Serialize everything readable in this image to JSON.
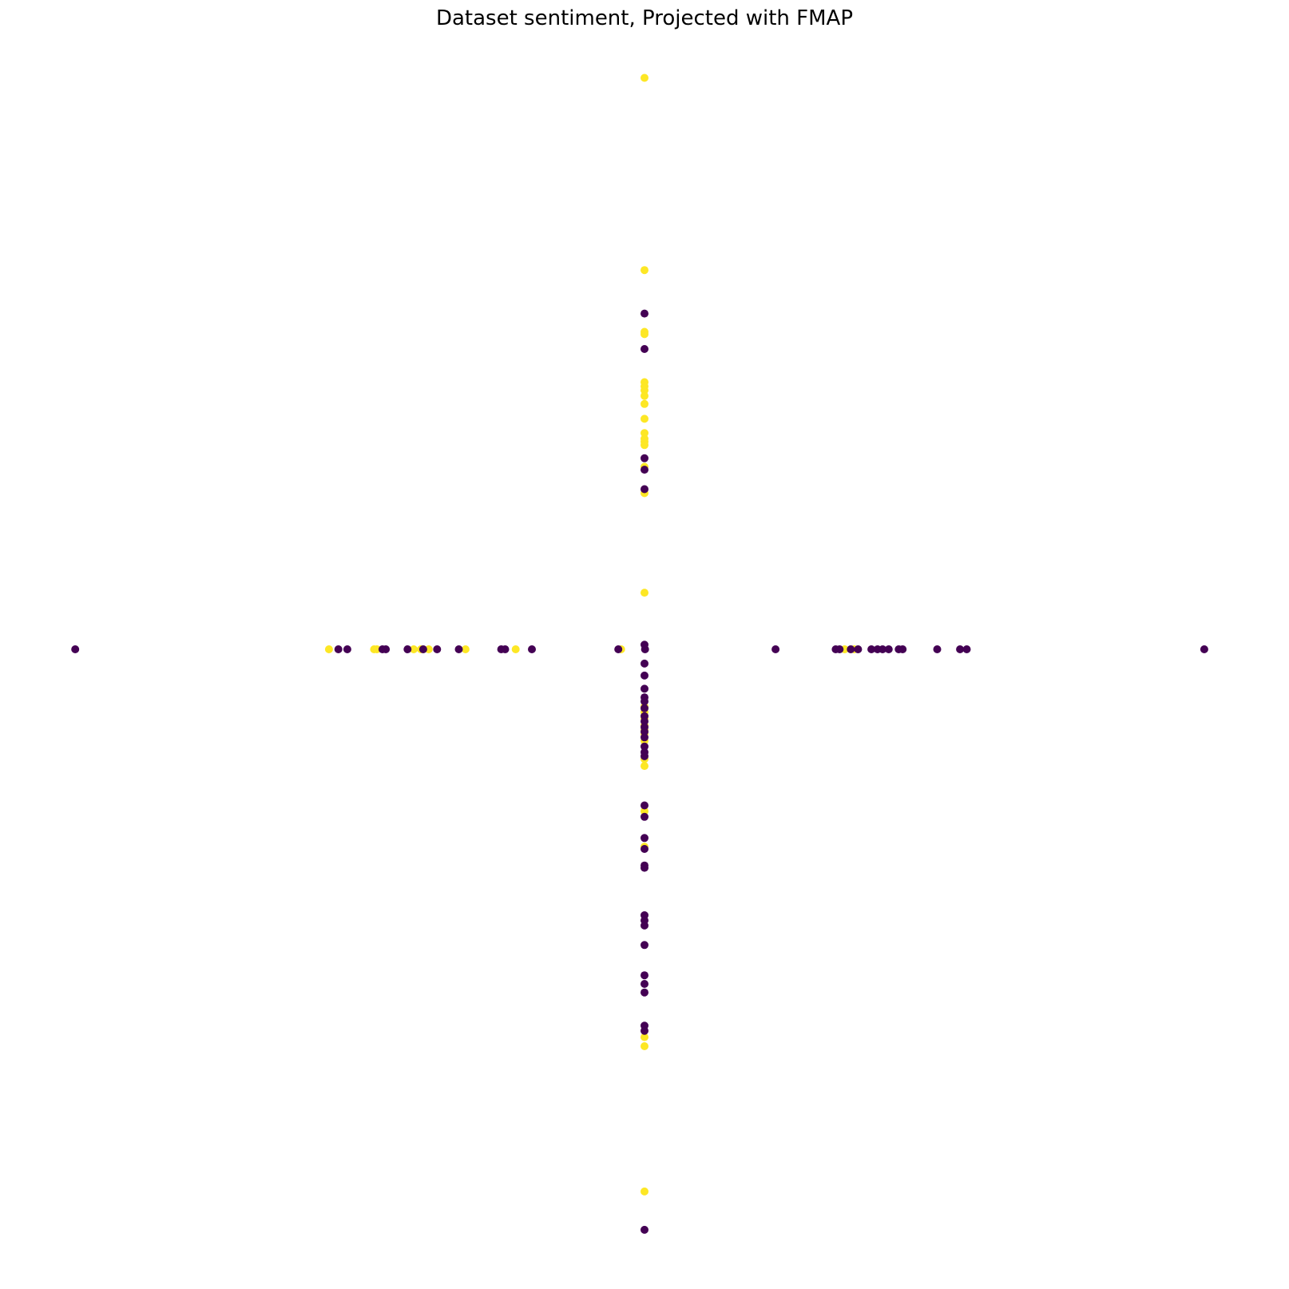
{
  "chart_data": {
    "type": "scatter",
    "title": "Dataset sentiment, Projected with FMAP",
    "xlabel": "",
    "ylabel": "",
    "axes_visible": false,
    "grid": false,
    "xlim": [
      -1.05,
      1.05
    ],
    "ylim": [
      -1.05,
      1.05
    ],
    "colors": {
      "0": "#440154",
      "1": "#fde725"
    },
    "series": [
      {
        "label_value": 1,
        "points": [
          [
            0.0,
            0.999
          ],
          [
            0.0,
            0.663
          ],
          [
            0.0,
            0.555
          ],
          [
            0.0,
            0.551
          ],
          [
            0.0,
            0.467
          ],
          [
            0.0,
            0.46
          ],
          [
            0.0,
            0.453
          ],
          [
            0.0,
            0.443
          ],
          [
            0.0,
            0.429
          ],
          [
            0.0,
            0.403
          ],
          [
            0.0,
            0.378
          ],
          [
            0.0,
            0.368
          ],
          [
            0.0,
            0.363
          ],
          [
            0.0,
            0.357
          ],
          [
            0.0,
            0.319
          ],
          [
            0.0,
            0.273
          ],
          [
            0.0,
            0.099
          ],
          [
            0.0,
            -0.1
          ],
          [
            0.0,
            -0.11
          ],
          [
            0.0,
            -0.121
          ],
          [
            0.0,
            -0.133
          ],
          [
            0.0,
            -0.141
          ],
          [
            0.0,
            -0.148
          ],
          [
            0.0,
            -0.16
          ],
          [
            0.0,
            -0.192
          ],
          [
            0.0,
            -0.204
          ],
          [
            0.0,
            -0.283
          ],
          [
            0.0,
            -0.345
          ],
          [
            0.0,
            -0.678
          ],
          [
            0.0,
            -0.694
          ],
          [
            0.0,
            -0.948
          ],
          [
            -0.566,
            0.0
          ],
          [
            -0.485,
            0.0
          ],
          [
            -0.48,
            0.0
          ],
          [
            -0.414,
            0.0
          ],
          [
            -0.401,
            0.0
          ],
          [
            -0.387,
            0.0
          ],
          [
            -0.321,
            0.0
          ],
          [
            -0.231,
            0.0
          ],
          [
            -0.042,
            0.0
          ],
          [
            0.359,
            0.0
          ],
          [
            0.376,
            0.0
          ]
        ]
      },
      {
        "label_value": 0,
        "points": [
          [
            0.0,
            -1.015
          ],
          [
            0.0,
            -0.025
          ],
          [
            0.0,
            -0.046
          ],
          [
            0.0,
            -0.069
          ],
          [
            0.0,
            -0.084
          ],
          [
            0.0,
            -0.091
          ],
          [
            0.0,
            -0.103
          ],
          [
            0.0,
            -0.117
          ],
          [
            0.0,
            -0.126
          ],
          [
            0.0,
            -0.136
          ],
          [
            0.0,
            -0.144
          ],
          [
            0.0,
            -0.154
          ],
          [
            0.0,
            -0.17
          ],
          [
            0.0,
            -0.18
          ],
          [
            0.0,
            -0.187
          ],
          [
            0.0,
            -0.273
          ],
          [
            0.0,
            -0.293
          ],
          [
            0.0,
            -0.33
          ],
          [
            0.0,
            -0.349
          ],
          [
            0.0,
            -0.378
          ],
          [
            0.0,
            -0.382
          ],
          [
            0.0,
            -0.465
          ],
          [
            0.0,
            -0.474
          ],
          [
            0.0,
            -0.483
          ],
          [
            0.0,
            -0.517
          ],
          [
            0.0,
            -0.57
          ],
          [
            0.0,
            -0.585
          ],
          [
            0.0,
            -0.6
          ],
          [
            0.0,
            -0.658
          ],
          [
            0.0,
            -0.667
          ],
          [
            0.0,
            0.587
          ],
          [
            0.0,
            0.525
          ],
          [
            0.0,
            0.334
          ],
          [
            0.0,
            0.314
          ],
          [
            0.0,
            0.28
          ],
          [
            0.0,
            0.008
          ],
          [
            -1.021,
            0.0
          ],
          [
            -0.549,
            0.0
          ],
          [
            -0.533,
            0.0
          ],
          [
            -0.47,
            0.0
          ],
          [
            -0.464,
            0.0
          ],
          [
            -0.425,
            0.0
          ],
          [
            -0.397,
            0.0
          ],
          [
            -0.372,
            0.0
          ],
          [
            -0.333,
            0.0
          ],
          [
            -0.257,
            0.0
          ],
          [
            -0.25,
            0.0
          ],
          [
            -0.202,
            0.0
          ],
          [
            -0.047,
            0.0
          ],
          [
            0.001,
            0.0
          ],
          [
            0.235,
            0.0
          ],
          [
            0.343,
            0.0
          ],
          [
            0.35,
            0.0
          ],
          [
            0.37,
            0.0
          ],
          [
            0.383,
            0.0
          ],
          [
            0.407,
            0.0
          ],
          [
            0.418,
            0.0
          ],
          [
            0.427,
            0.0
          ],
          [
            0.438,
            0.0
          ],
          [
            0.456,
            0.0
          ],
          [
            0.463,
            0.0
          ],
          [
            0.525,
            0.0
          ],
          [
            0.566,
            0.0
          ],
          [
            0.578,
            0.0
          ],
          [
            1.004,
            0.0
          ]
        ]
      }
    ]
  }
}
